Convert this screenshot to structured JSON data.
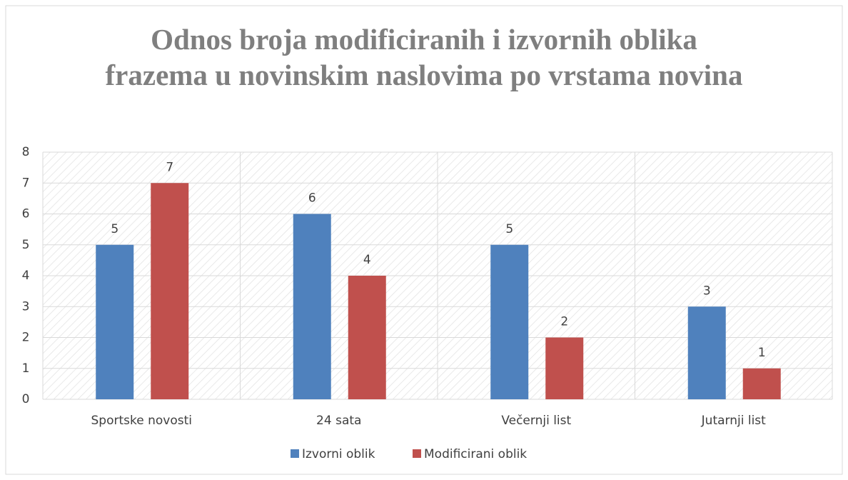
{
  "chart_data": {
    "type": "bar",
    "title": "Odnos broja modificiranih i izvornih oblika frazema u novinskim naslovima po vrstama novina",
    "categories": [
      "Sportske novosti",
      "24 sata",
      "Večernji list",
      "Jutarnji list"
    ],
    "series": [
      {
        "name": "Izvorni oblik",
        "color": "#4f81bd",
        "values": [
          5,
          6,
          5,
          3
        ]
      },
      {
        "name": "Modificirani oblik",
        "color": "#c0504d",
        "values": [
          7,
          4,
          2,
          1
        ]
      }
    ],
    "ylim": [
      0,
      8
    ],
    "yticks": [
      0,
      1,
      2,
      3,
      4,
      5,
      6,
      7,
      8
    ],
    "grid": true,
    "legend": "bottom"
  }
}
